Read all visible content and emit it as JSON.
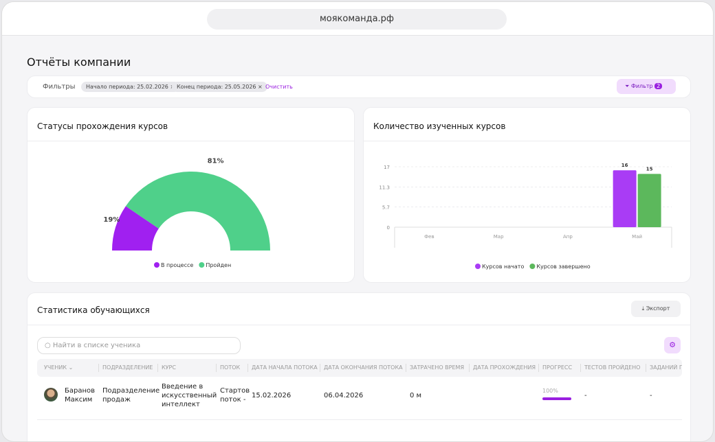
{
  "browser": {
    "url": "моякоманда.рф"
  },
  "page": {
    "title": "Отчёты компании"
  },
  "filters": {
    "label": "Фильтры",
    "chips": [
      "Начало периода: 25.02.2026",
      "Конец периода: 25.05.2026"
    ],
    "clear": "Очистить",
    "button": "Фильтр",
    "count": "2"
  },
  "status_chart": {
    "chart_data": {
      "type": "pie",
      "title": "Статусы прохождения курсов",
      "categories": [
        "В процессе",
        "Пройден"
      ],
      "values": [
        19,
        81
      ],
      "value_labels": [
        "19%",
        "81%"
      ],
      "colors": [
        "#a020f0",
        "#4fd08a"
      ]
    }
  },
  "courses_chart": {
    "chart_data": {
      "type": "bar",
      "title": "Количество изученных курсов",
      "categories": [
        "Фев",
        "Мар",
        "Апр",
        "Май"
      ],
      "series": [
        {
          "name": "Курсов начато",
          "color": "#a93cf5",
          "values": [
            0,
            0,
            0,
            16
          ]
        },
        {
          "name": "Курсов завершено",
          "color": "#5cb85c",
          "values": [
            0,
            0,
            0,
            15
          ]
        }
      ],
      "ylim": [
        0,
        17
      ],
      "yticks": [
        0,
        5.7,
        11.3,
        17
      ],
      "grid": true
    }
  },
  "table": {
    "title": "Статистика обучающихся",
    "export": "Экспорт",
    "search": "Найти в списке ученика",
    "columns": [
      "УЧЕНИК ⌄",
      "ПОДРАЗДЕЛЕНИЕ",
      "КУРС",
      "ПОТОК",
      "ДАТА НАЧАЛА ПОТОКА",
      "ДАТА ОКОНЧАНИЯ ПОТОКА",
      "ЗАТРАЧЕНО ВРЕМЯ",
      "ДАТА ПРОХОЖДЕНИЯ",
      "ПРОГРЕСС",
      "ТЕСТОВ ПРОЙДЕНО",
      "ЗАДАНИЙ ПРОЙДЕНО"
    ],
    "rows": [
      {
        "student": "Баранов Максим",
        "department": "Подразделение продаж",
        "course": "Введение в искусственный интеллект",
        "stream": "Стартов поток -",
        "start": "15.02.2026",
        "end": "06.04.2026",
        "time": "0 м",
        "progress": {
          "value": 100,
          "label": "100%"
        },
        "tests": "-",
        "tasks": "-"
      }
    ]
  }
}
